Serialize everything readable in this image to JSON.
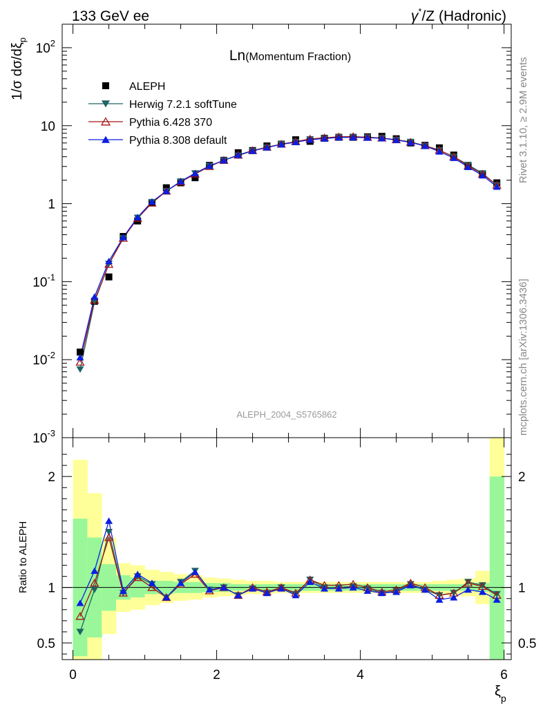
{
  "header": {
    "left": "133 GeV ee",
    "right_prefix": "γ",
    "right_sup": "*",
    "right_suffix": "/Z (Hadronic)"
  },
  "side_text": {
    "top": "Rivet 3.1.10, ≥ 2.9M events",
    "bottom": "mcplots.cern.ch [arXiv:1306.3436]"
  },
  "plot_title": {
    "main": "Ln",
    "sub": "(Momentum Fraction)"
  },
  "watermark": "ALEPH_2004_S5765862",
  "colors": {
    "data": "#000000",
    "herwig": "#1f6464",
    "pythia6": "#a31414",
    "pythia8": "#0b1fe0",
    "band_inner": "#99f799",
    "band_outer": "#ffff99"
  },
  "chart_data": [
    {
      "type": "line",
      "yscale": "log",
      "ylabel_main": "1/σ dσ/dξ",
      "ylabel_sub": "p",
      "ylim": [
        0.001,
        200
      ],
      "xlim": [
        -0.15,
        6.1
      ],
      "yticks": [
        {
          "base": "10",
          "exp": "-3"
        },
        {
          "base": "10",
          "exp": "-2"
        },
        {
          "base": "10",
          "exp": "-1"
        },
        {
          "base": "1",
          "exp": ""
        },
        {
          "base": "10",
          "exp": ""
        },
        {
          "base": "10",
          "exp": "2"
        }
      ],
      "x": [
        0.1,
        0.3,
        0.5,
        0.7,
        0.9,
        1.1,
        1.3,
        1.5,
        1.7,
        1.9,
        2.1,
        2.3,
        2.5,
        2.7,
        2.9,
        3.1,
        3.3,
        3.5,
        3.7,
        3.9,
        4.1,
        4.3,
        4.5,
        4.7,
        4.9,
        5.1,
        5.3,
        5.5,
        5.7,
        5.9
      ],
      "series": [
        {
          "name": "ALEPH",
          "key": "data",
          "marker": "square",
          "values": [
            0.0125,
            0.056,
            0.115,
            0.38,
            0.6,
            1.02,
            1.6,
            1.85,
            2.15,
            3.1,
            3.6,
            4.5,
            4.8,
            5.5,
            5.8,
            6.6,
            6.3,
            6.9,
            7.1,
            7.1,
            7.2,
            7.3,
            6.8,
            6.0,
            5.6,
            5.2,
            4.2,
            3.0,
            2.4,
            1.85
          ]
        },
        {
          "name": "Herwig 7.2.1 softTune",
          "key": "herwig",
          "marker": "triangle-down",
          "values": [
            0.0075,
            0.055,
            0.17,
            0.36,
            0.66,
            1.05,
            1.45,
            1.93,
            2.45,
            3.05,
            3.6,
            4.15,
            4.75,
            5.25,
            5.8,
            6.2,
            6.7,
            6.9,
            7.1,
            7.15,
            7.1,
            6.95,
            6.6,
            6.2,
            5.5,
            4.85,
            4.0,
            3.15,
            2.45,
            1.73
          ]
        },
        {
          "name": "Pythia 6.428 370",
          "key": "pythia6",
          "marker": "triangle-open",
          "values": [
            0.0093,
            0.058,
            0.167,
            0.36,
            0.65,
            1.02,
            1.45,
            1.9,
            2.4,
            3.0,
            3.6,
            4.2,
            4.8,
            5.3,
            5.8,
            6.25,
            6.75,
            7.0,
            7.2,
            7.25,
            7.1,
            6.95,
            6.6,
            6.15,
            5.55,
            4.85,
            4.0,
            3.05,
            2.4,
            1.73
          ]
        },
        {
          "name": "Pythia 8.308 default",
          "key": "pythia8",
          "marker": "triangle-up",
          "values": [
            0.0107,
            0.064,
            0.183,
            0.37,
            0.67,
            1.06,
            1.45,
            1.93,
            2.45,
            3.05,
            3.6,
            4.2,
            4.75,
            5.25,
            5.75,
            6.15,
            6.6,
            6.85,
            7.05,
            7.1,
            7.0,
            6.9,
            6.55,
            6.1,
            5.5,
            4.65,
            3.85,
            2.95,
            2.3,
            1.65
          ]
        }
      ]
    },
    {
      "type": "line",
      "ylabel": "Ratio to ALEPH",
      "xlabel_main": "ξ",
      "xlabel_sub": "p",
      "ylim": [
        0.35,
        2.35
      ],
      "xlim": [
        -0.15,
        6.1
      ],
      "xticks": [
        "0",
        "2",
        "4",
        "6"
      ],
      "yticks": [
        "0.5",
        "1",
        "2"
      ],
      "x": [
        0.1,
        0.3,
        0.5,
        0.7,
        0.9,
        1.1,
        1.3,
        1.5,
        1.7,
        1.9,
        2.1,
        2.3,
        2.5,
        2.7,
        2.9,
        3.1,
        3.3,
        3.5,
        3.7,
        3.9,
        4.1,
        4.3,
        4.5,
        4.7,
        4.9,
        5.1,
        5.3,
        5.5,
        5.7,
        5.9
      ],
      "bands": {
        "edges": [
          0,
          0.2,
          0.4,
          0.6,
          0.8,
          1.0,
          1.2,
          1.4,
          1.6,
          1.8,
          2.0,
          2.2,
          2.4,
          2.6,
          2.8,
          3.0,
          3.2,
          3.4,
          3.6,
          3.8,
          4.0,
          4.2,
          4.4,
          4.6,
          4.8,
          5.0,
          5.2,
          5.4,
          5.6,
          5.8,
          6.0
        ],
        "inner_lo": [
          0.38,
          0.55,
          0.79,
          0.89,
          0.91,
          0.94,
          0.94,
          0.95,
          0.95,
          0.96,
          0.96,
          0.97,
          0.97,
          0.97,
          0.97,
          0.97,
          0.97,
          0.97,
          0.97,
          0.97,
          0.97,
          0.97,
          0.97,
          0.97,
          0.97,
          0.97,
          0.97,
          0.97,
          0.96,
          0.35
        ],
        "inner_hi": [
          1.62,
          1.45,
          1.21,
          1.11,
          1.09,
          1.06,
          1.06,
          1.05,
          1.05,
          1.04,
          1.04,
          1.03,
          1.03,
          1.03,
          1.03,
          1.03,
          1.03,
          1.03,
          1.03,
          1.03,
          1.03,
          1.03,
          1.03,
          1.03,
          1.03,
          1.03,
          1.03,
          1.03,
          1.04,
          2.0
        ],
        "outer_lo": [
          0.35,
          0.35,
          0.58,
          0.78,
          0.8,
          0.84,
          0.86,
          0.88,
          0.89,
          0.91,
          0.92,
          0.93,
          0.94,
          0.94,
          0.95,
          0.95,
          0.95,
          0.95,
          0.95,
          0.95,
          0.95,
          0.95,
          0.95,
          0.95,
          0.95,
          0.94,
          0.93,
          0.92,
          0.85,
          0.35
        ],
        "outer_hi": [
          2.15,
          1.85,
          1.45,
          1.22,
          1.2,
          1.16,
          1.14,
          1.12,
          1.11,
          1.09,
          1.08,
          1.07,
          1.06,
          1.06,
          1.05,
          1.05,
          1.05,
          1.05,
          1.05,
          1.05,
          1.05,
          1.05,
          1.05,
          1.05,
          1.05,
          1.06,
          1.07,
          1.08,
          1.15,
          2.35
        ]
      },
      "series": [
        {
          "name": "Herwig 7.2.1 softTune",
          "key": "herwig",
          "marker": "triangle-down",
          "values": [
            0.6,
            0.98,
            1.5,
            0.95,
            1.1,
            1.03,
            0.91,
            1.05,
            1.15,
            0.98,
            1.0,
            0.93,
            0.99,
            0.95,
            1.0,
            0.94,
            1.07,
            1.0,
            1.0,
            1.01,
            0.99,
            0.95,
            0.97,
            1.03,
            0.98,
            0.93,
            0.95,
            1.05,
            1.02,
            0.94
          ]
        },
        {
          "name": "Pythia 6.428 370",
          "key": "pythia6",
          "marker": "triangle-open",
          "values": [
            0.74,
            1.04,
            1.45,
            0.95,
            1.09,
            1.0,
            0.91,
            1.03,
            1.12,
            0.97,
            1.0,
            0.93,
            1.0,
            0.96,
            1.0,
            0.95,
            1.07,
            1.02,
            1.02,
            1.03,
            1.0,
            0.96,
            0.98,
            1.04,
            1.0,
            0.93,
            0.95,
            1.04,
            1.01,
            0.93
          ]
        },
        {
          "name": "Pythia 8.308 default",
          "key": "pythia8",
          "marker": "triangle-up",
          "values": [
            0.86,
            1.15,
            1.6,
            0.97,
            1.12,
            1.04,
            0.91,
            1.04,
            1.14,
            0.98,
            1.0,
            0.93,
            0.99,
            0.95,
            0.99,
            0.93,
            1.05,
            0.99,
            0.99,
            1.0,
            0.97,
            0.95,
            0.96,
            1.02,
            0.98,
            0.89,
            0.91,
            0.98,
            0.96,
            0.89
          ]
        }
      ]
    }
  ]
}
